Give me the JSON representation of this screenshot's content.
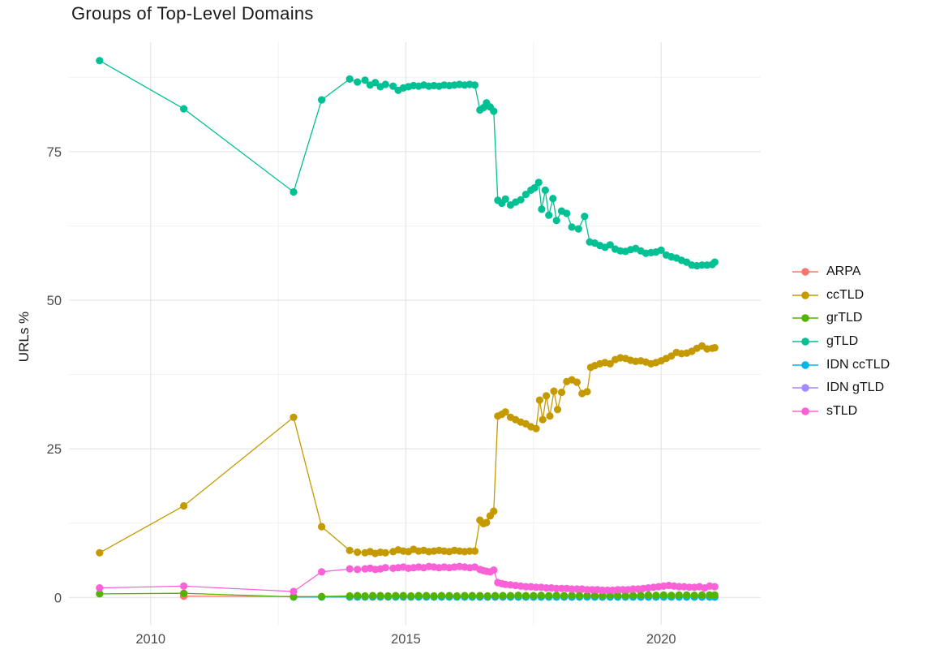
{
  "title": "Groups of Top-Level Domains",
  "axes": {
    "y_label": "URLs %",
    "y_tick_labels": [
      "0",
      "25",
      "50",
      "75"
    ],
    "x_tick_labels": [
      "2010",
      "2015",
      "2020"
    ]
  },
  "legend": {
    "position": "right",
    "items": [
      "ARPA",
      "ccTLD",
      "grTLD",
      "gTLD",
      "IDN ccTLD",
      "IDN gTLD",
      "sTLD"
    ]
  },
  "colors": {
    "ARPA": "#F8766D",
    "ccTLD": "#C49A00",
    "grTLD": "#53B400",
    "gTLD": "#00C094",
    "IDN ccTLD": "#00B6EB",
    "IDN gTLD": "#A58AFF",
    "sTLD": "#FB61D7",
    "grid_major": "#e5e5e5",
    "grid_minor": "#efefef",
    "axis_text": "#4d4d4d",
    "title_text": "#1a1a1a"
  },
  "chart_data": {
    "type": "line",
    "title": "Groups of Top-Level Domains",
    "xlabel": "",
    "ylabel": "URLs %",
    "xlim": [
      2008.4,
      2021.95
    ],
    "ylim": [
      -4.6,
      93.4
    ],
    "x_ticks_major": [
      2010,
      2015,
      2020
    ],
    "x_gridlines_minor": [
      2012.5,
      2017.5
    ],
    "y_ticks_major": [
      0,
      25,
      50,
      75
    ],
    "y_gridlines_minor": [
      12.5,
      37.5,
      62.5,
      87.5
    ],
    "grid": true,
    "legend_position": "right",
    "draw_order": [
      "ARPA",
      "IDN gTLD",
      "IDN ccTLD",
      "grTLD",
      "sTLD",
      "ccTLD",
      "gTLD"
    ],
    "dense_years": [
      2013.9,
      2014.05,
      2014.2,
      2014.35,
      2014.5,
      2014.65,
      2014.8,
      2014.95,
      2015.1,
      2015.25,
      2015.4,
      2015.55,
      2015.7,
      2015.85,
      2016.0,
      2016.15,
      2016.3,
      2016.45,
      2016.6,
      2016.75,
      2016.9,
      2017.05,
      2017.2,
      2017.35,
      2017.5,
      2017.65,
      2017.8,
      2017.95,
      2018.1,
      2018.25,
      2018.4,
      2018.55,
      2018.7,
      2018.85,
      2019.0,
      2019.15,
      2019.3,
      2019.45,
      2019.6,
      2019.75,
      2019.9,
      2020.05,
      2020.2,
      2020.35,
      2020.5,
      2020.65,
      2020.8,
      2020.95,
      2021.05
    ],
    "series": [
      {
        "name": "ARPA",
        "points": [
          [
            2010.65,
            0.2
          ],
          [
            2012.8,
            0.15
          ],
          [
            2013.35,
            0.1
          ]
        ],
        "flat_value": 0.1,
        "dense_from": 2013.9
      },
      {
        "name": "ccTLD",
        "points": [
          [
            2009,
            7.5
          ],
          [
            2010.65,
            15.4
          ],
          [
            2012.8,
            30.3
          ],
          [
            2013.35,
            11.9
          ],
          [
            2013.9,
            7.9
          ],
          [
            2014.05,
            7.6
          ],
          [
            2014.2,
            7.5
          ],
          [
            2014.3,
            7.7
          ],
          [
            2014.4,
            7.4
          ],
          [
            2014.5,
            7.6
          ],
          [
            2014.6,
            7.5
          ],
          [
            2014.75,
            7.7
          ],
          [
            2014.85,
            8
          ],
          [
            2014.95,
            7.8
          ],
          [
            2015.05,
            7.7
          ],
          [
            2015.15,
            8.1
          ],
          [
            2015.25,
            7.8
          ],
          [
            2015.35,
            7.9
          ],
          [
            2015.45,
            7.7
          ],
          [
            2015.55,
            7.8
          ],
          [
            2015.65,
            7.9
          ],
          [
            2015.75,
            7.8
          ],
          [
            2015.85,
            7.7
          ],
          [
            2015.95,
            7.9
          ],
          [
            2016.05,
            7.8
          ],
          [
            2016.15,
            7.7
          ],
          [
            2016.25,
            7.8
          ],
          [
            2016.35,
            7.8
          ],
          [
            2016.45,
            13
          ],
          [
            2016.52,
            12.4
          ],
          [
            2016.58,
            12.6
          ],
          [
            2016.65,
            13.7
          ],
          [
            2016.72,
            14.5
          ],
          [
            2016.8,
            30.5
          ],
          [
            2016.88,
            30.8
          ],
          [
            2016.95,
            31.2
          ],
          [
            2017.05,
            30.3
          ],
          [
            2017.15,
            29.9
          ],
          [
            2017.25,
            29.5
          ],
          [
            2017.35,
            29.2
          ],
          [
            2017.45,
            28.7
          ],
          [
            2017.55,
            28.4
          ],
          [
            2017.62,
            33.2
          ],
          [
            2017.68,
            29.9
          ],
          [
            2017.75,
            33.9
          ],
          [
            2017.82,
            30.5
          ],
          [
            2017.9,
            34.7
          ],
          [
            2017.97,
            31.6
          ],
          [
            2018.05,
            34.5
          ],
          [
            2018.15,
            36.3
          ],
          [
            2018.25,
            36.6
          ],
          [
            2018.35,
            36.2
          ],
          [
            2018.45,
            34.3
          ],
          [
            2018.55,
            34.6
          ],
          [
            2018.62,
            38.7
          ],
          [
            2018.7,
            39
          ],
          [
            2018.8,
            39.3
          ],
          [
            2018.9,
            39.5
          ],
          [
            2019,
            39.3
          ],
          [
            2019.1,
            40
          ],
          [
            2019.2,
            40.3
          ],
          [
            2019.3,
            40.2
          ],
          [
            2019.4,
            39.9
          ],
          [
            2019.5,
            39.7
          ],
          [
            2019.6,
            39.8
          ],
          [
            2019.7,
            39.6
          ],
          [
            2019.8,
            39.3
          ],
          [
            2019.9,
            39.5
          ],
          [
            2020,
            39.8
          ],
          [
            2020.1,
            40.2
          ],
          [
            2020.2,
            40.6
          ],
          [
            2020.3,
            41.2
          ],
          [
            2020.4,
            41
          ],
          [
            2020.5,
            41.1
          ],
          [
            2020.6,
            41.4
          ],
          [
            2020.7,
            41.9
          ],
          [
            2020.8,
            42.3
          ],
          [
            2020.9,
            41.8
          ],
          [
            2021,
            41.9
          ],
          [
            2021.05,
            42
          ]
        ]
      },
      {
        "name": "grTLD",
        "points": [
          [
            2009,
            0.6
          ],
          [
            2010.65,
            0.7
          ],
          [
            2012.8,
            0.1
          ],
          [
            2013.35,
            0.15
          ]
        ],
        "dense_values": [
          0.25,
          0.3,
          0.25,
          0.3,
          0.3,
          0.25,
          0.3,
          0.3,
          0.25,
          0.3,
          0.3,
          0.25,
          0.3,
          0.3,
          0.25,
          0.3,
          0.3,
          0.3,
          0.25,
          0.3,
          0.3,
          0.3,
          0.35,
          0.3,
          0.3,
          0.35,
          0.3,
          0.35,
          0.3,
          0.35,
          0.3,
          0.35,
          0.35,
          0.3,
          0.35,
          0.35,
          0.3,
          0.35,
          0.35,
          0.4,
          0.35,
          0.4,
          0.35,
          0.4,
          0.4,
          0.35,
          0.4,
          0.4,
          0.4
        ]
      },
      {
        "name": "gTLD",
        "points": [
          [
            2009,
            90.3
          ],
          [
            2010.65,
            82.2
          ],
          [
            2012.8,
            68.2
          ],
          [
            2013.35,
            83.7
          ],
          [
            2013.9,
            87.2
          ],
          [
            2014.05,
            86.7
          ],
          [
            2014.2,
            87
          ],
          [
            2014.3,
            86.2
          ],
          [
            2014.4,
            86.6
          ],
          [
            2014.5,
            85.9
          ],
          [
            2014.6,
            86.3
          ],
          [
            2014.75,
            86
          ],
          [
            2014.85,
            85.3
          ],
          [
            2014.95,
            85.7
          ],
          [
            2015.05,
            85.9
          ],
          [
            2015.15,
            86.1
          ],
          [
            2015.25,
            86
          ],
          [
            2015.35,
            86.2
          ],
          [
            2015.45,
            86
          ],
          [
            2015.55,
            86.1
          ],
          [
            2015.65,
            86
          ],
          [
            2015.75,
            86.2
          ],
          [
            2015.85,
            86.1
          ],
          [
            2015.95,
            86.2
          ],
          [
            2016.05,
            86.3
          ],
          [
            2016.15,
            86.2
          ],
          [
            2016.25,
            86.3
          ],
          [
            2016.35,
            86.2
          ],
          [
            2016.45,
            82
          ],
          [
            2016.52,
            82.4
          ],
          [
            2016.58,
            83.2
          ],
          [
            2016.65,
            82.5
          ],
          [
            2016.72,
            81.8
          ],
          [
            2016.8,
            66.8
          ],
          [
            2016.88,
            66.3
          ],
          [
            2016.95,
            67
          ],
          [
            2017.05,
            66
          ],
          [
            2017.15,
            66.5
          ],
          [
            2017.25,
            66.9
          ],
          [
            2017.35,
            67.8
          ],
          [
            2017.45,
            68.5
          ],
          [
            2017.52,
            68.9
          ],
          [
            2017.6,
            69.8
          ],
          [
            2017.66,
            65.3
          ],
          [
            2017.73,
            68.5
          ],
          [
            2017.8,
            64.3
          ],
          [
            2017.88,
            67.1
          ],
          [
            2017.95,
            63.4
          ],
          [
            2018.05,
            65
          ],
          [
            2018.15,
            64.6
          ],
          [
            2018.25,
            62.3
          ],
          [
            2018.38,
            62
          ],
          [
            2018.5,
            64.1
          ],
          [
            2018.6,
            59.8
          ],
          [
            2018.7,
            59.6
          ],
          [
            2018.8,
            59.2
          ],
          [
            2018.9,
            58.9
          ],
          [
            2019,
            59.3
          ],
          [
            2019.1,
            58.6
          ],
          [
            2019.2,
            58.3
          ],
          [
            2019.3,
            58.2
          ],
          [
            2019.4,
            58.5
          ],
          [
            2019.5,
            58.7
          ],
          [
            2019.6,
            58.3
          ],
          [
            2019.7,
            57.9
          ],
          [
            2019.8,
            58
          ],
          [
            2019.9,
            58.1
          ],
          [
            2020,
            58.4
          ],
          [
            2020.1,
            57.6
          ],
          [
            2020.2,
            57.3
          ],
          [
            2020.3,
            57.1
          ],
          [
            2020.4,
            56.7
          ],
          [
            2020.5,
            56.4
          ],
          [
            2020.6,
            55.9
          ],
          [
            2020.7,
            55.8
          ],
          [
            2020.8,
            55.9
          ],
          [
            2020.9,
            55.9
          ],
          [
            2021,
            56
          ],
          [
            2021.05,
            56.4
          ]
        ]
      },
      {
        "name": "IDN ccTLD",
        "points": [
          [
            2012.8,
            0.05
          ],
          [
            2013.35,
            0.05
          ]
        ],
        "flat_value": 0.05,
        "dense_from": 2013.9
      },
      {
        "name": "IDN gTLD",
        "points": [],
        "flat_value": 0.05,
        "dense_from": 2016.3
      },
      {
        "name": "sTLD",
        "points": [
          [
            2009,
            1.6
          ],
          [
            2010.65,
            1.9
          ],
          [
            2012.8,
            1
          ],
          [
            2013.35,
            4.3
          ],
          [
            2013.9,
            4.8
          ],
          [
            2014.05,
            4.7
          ],
          [
            2014.2,
            4.8
          ],
          [
            2014.3,
            4.9
          ],
          [
            2014.4,
            4.7
          ],
          [
            2014.5,
            4.8
          ],
          [
            2014.6,
            5
          ],
          [
            2014.75,
            4.9
          ],
          [
            2014.85,
            5
          ],
          [
            2014.95,
            5.1
          ],
          [
            2015.05,
            4.9
          ],
          [
            2015.15,
            5
          ],
          [
            2015.25,
            5.1
          ],
          [
            2015.35,
            5
          ],
          [
            2015.45,
            5.2
          ],
          [
            2015.55,
            5.1
          ],
          [
            2015.65,
            5
          ],
          [
            2015.75,
            5.1
          ],
          [
            2015.85,
            5
          ],
          [
            2015.95,
            5.1
          ],
          [
            2016.05,
            5.2
          ],
          [
            2016.15,
            5.1
          ],
          [
            2016.25,
            5
          ],
          [
            2016.35,
            5.1
          ],
          [
            2016.45,
            4.7
          ],
          [
            2016.52,
            4.5
          ],
          [
            2016.58,
            4.4
          ],
          [
            2016.65,
            4.3
          ],
          [
            2016.72,
            4.6
          ],
          [
            2016.8,
            2.5
          ],
          [
            2016.88,
            2.3
          ],
          [
            2016.95,
            2.2
          ],
          [
            2017.05,
            2.1
          ],
          [
            2017.15,
            2
          ],
          [
            2017.25,
            1.9
          ],
          [
            2017.35,
            1.8
          ],
          [
            2017.45,
            1.8
          ],
          [
            2017.55,
            1.7
          ],
          [
            2017.65,
            1.7
          ],
          [
            2017.75,
            1.6
          ],
          [
            2017.85,
            1.6
          ],
          [
            2017.95,
            1.5
          ],
          [
            2018.05,
            1.5
          ],
          [
            2018.15,
            1.5
          ],
          [
            2018.25,
            1.4
          ],
          [
            2018.35,
            1.4
          ],
          [
            2018.45,
            1.4
          ],
          [
            2018.55,
            1.3
          ],
          [
            2018.65,
            1.3
          ],
          [
            2018.75,
            1.3
          ],
          [
            2018.85,
            1.2
          ],
          [
            2018.95,
            1.2
          ],
          [
            2019.05,
            1.2
          ],
          [
            2019.15,
            1.3
          ],
          [
            2019.25,
            1.3
          ],
          [
            2019.35,
            1.3
          ],
          [
            2019.45,
            1.4
          ],
          [
            2019.55,
            1.4
          ],
          [
            2019.65,
            1.5
          ],
          [
            2019.75,
            1.6
          ],
          [
            2019.85,
            1.7
          ],
          [
            2019.95,
            1.8
          ],
          [
            2020.05,
            1.9
          ],
          [
            2020.15,
            2
          ],
          [
            2020.25,
            1.9
          ],
          [
            2020.35,
            1.8
          ],
          [
            2020.45,
            1.8
          ],
          [
            2020.55,
            1.7
          ],
          [
            2020.65,
            1.7
          ],
          [
            2020.75,
            1.8
          ],
          [
            2020.85,
            1.6
          ],
          [
            2020.95,
            1.9
          ],
          [
            2021.05,
            1.8
          ]
        ]
      }
    ]
  }
}
